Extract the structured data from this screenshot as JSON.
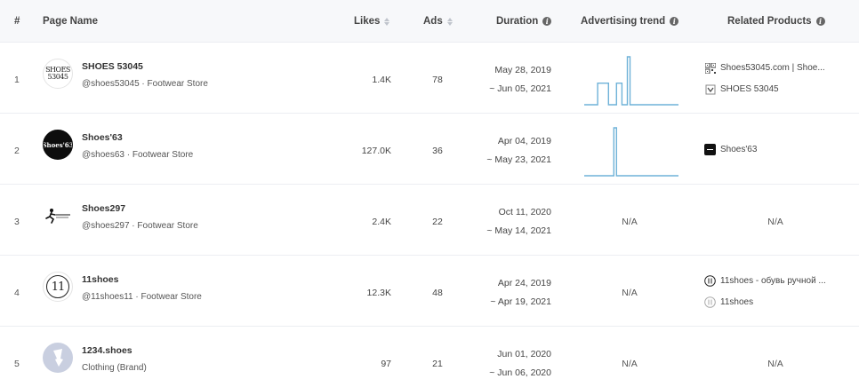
{
  "columns": {
    "index": "#",
    "page_name": "Page Name",
    "likes": "Likes",
    "ads": "Ads",
    "duration": "Duration",
    "trend": "Advertising trend",
    "related": "Related Products"
  },
  "rows": [
    {
      "index": "1",
      "name": "SHOES 53045",
      "sub": "@shoes53045 · Footwear Store",
      "logo_text_1": "SHOES",
      "logo_text_2": "53045",
      "likes": "1.4K",
      "ads": "78",
      "start": "May 28, 2019",
      "end": "~ Jun 05, 2021",
      "related": [
        "Shoes53045.com | Shoe...",
        "SHOES 53045"
      ]
    },
    {
      "index": "2",
      "name": "Shoes'63",
      "sub": "@shoes63 · Footwear Store",
      "logo_text_1": "Shoes'63",
      "likes": "127.0K",
      "ads": "36",
      "start": "Apr 04, 2019",
      "end": "~ May 23, 2021",
      "related": [
        "Shoes'63"
      ]
    },
    {
      "index": "3",
      "name": "Shoes297",
      "sub": "@shoes297 · Footwear Store",
      "likes": "2.4K",
      "ads": "22",
      "start": "Oct 11, 2020",
      "end": "~ May 14, 2021",
      "trend_na": "N/A",
      "related_na": "N/A"
    },
    {
      "index": "4",
      "name": "11shoes",
      "sub": "@11shoes11 · Footwear Store",
      "logo_text_1": "11",
      "likes": "12.3K",
      "ads": "48",
      "start": "Apr 24, 2019",
      "end": "~ Apr 19, 2021",
      "trend_na": "N/A",
      "related": [
        "11shoes - обувь ручной ...",
        "11shoes"
      ]
    },
    {
      "index": "5",
      "name": "1234.shoes",
      "sub": "Clothing (Brand)",
      "likes": "97",
      "ads": "21",
      "start": "Jun 01, 2020",
      "end": "~ Jun 06, 2020",
      "trend_na": "N/A",
      "related_na": "N/A"
    }
  ],
  "trends": [
    [
      0,
      0,
      0,
      0,
      0,
      0.45,
      0.45,
      0.45,
      0.45,
      0,
      0,
      0,
      0.45,
      0.45,
      0,
      0,
      1.0,
      0,
      0,
      0,
      0,
      0,
      0,
      0,
      0,
      0,
      0,
      0,
      0,
      0,
      0,
      0,
      0,
      0,
      0,
      0
    ],
    [
      0,
      0,
      0,
      0,
      0,
      0,
      0,
      0,
      0,
      0,
      0,
      1.0,
      0,
      0,
      0,
      0,
      0,
      0,
      0,
      0,
      0,
      0,
      0,
      0,
      0,
      0,
      0,
      0,
      0,
      0,
      0,
      0,
      0,
      0,
      0,
      0
    ]
  ],
  "colors": {
    "trend_line": "#6fb2d8",
    "header_bg": "#f7f8fa"
  },
  "icons": {
    "sort": "sort-icon",
    "info": "info-icon"
  }
}
